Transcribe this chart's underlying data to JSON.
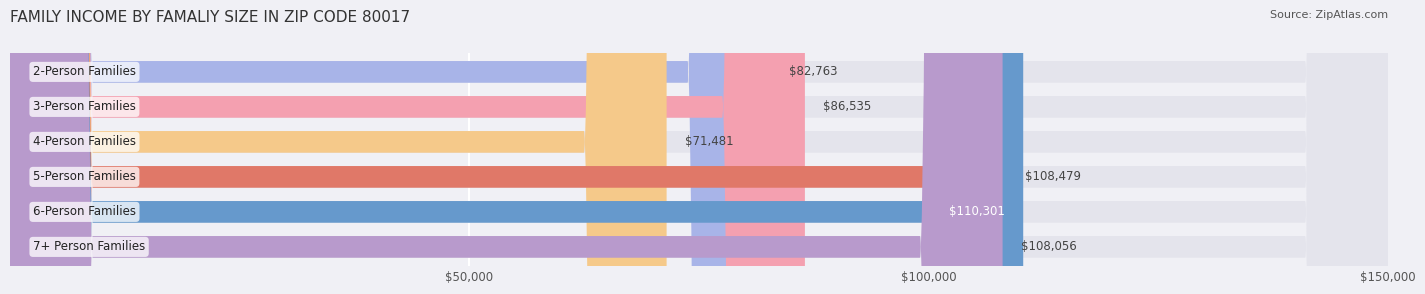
{
  "title": "FAMILY INCOME BY FAMALIY SIZE IN ZIP CODE 80017",
  "source": "Source: ZipAtlas.com",
  "categories": [
    "2-Person Families",
    "3-Person Families",
    "4-Person Families",
    "5-Person Families",
    "6-Person Families",
    "7+ Person Families"
  ],
  "values": [
    82763,
    86535,
    71481,
    108479,
    110301,
    108056
  ],
  "bar_colors": [
    "#a8b4e8",
    "#f4a0b0",
    "#f5c98a",
    "#e07868",
    "#6699cc",
    "#b89acc"
  ],
  "value_labels": [
    "$82,763",
    "$86,535",
    "$71,481",
    "$108,479",
    "$110,301",
    "$108,056"
  ],
  "label_inside": [
    false,
    false,
    false,
    false,
    true,
    false
  ],
  "xlim": [
    0,
    150000
  ],
  "xticks": [
    0,
    50000,
    100000,
    150000
  ],
  "xticklabels": [
    "",
    "$50,000",
    "$100,000",
    "$150,000"
  ],
  "background_color": "#f0f0f5",
  "bar_background_color": "#e4e4ec",
  "bar_height": 0.62,
  "title_fontsize": 11,
  "label_fontsize": 8.5,
  "value_fontsize": 8.5,
  "source_fontsize": 8
}
